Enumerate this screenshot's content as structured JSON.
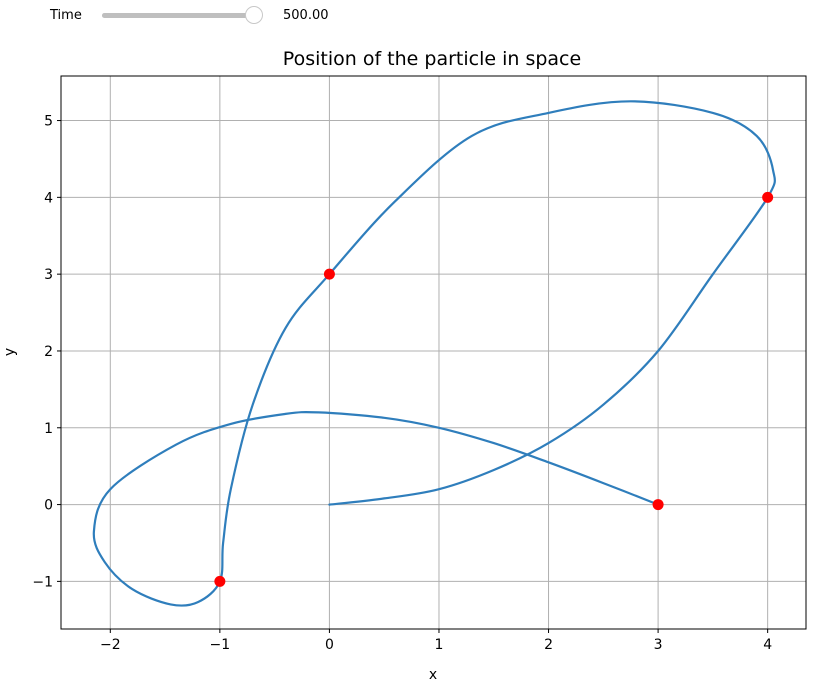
{
  "controls": {
    "time_label": "Time",
    "time_value": "500.00",
    "slider_fraction": 1.0
  },
  "chart_data": {
    "type": "line",
    "title": "Position of the particle in space",
    "xlabel": "x",
    "ylabel": "y",
    "xlim": [
      -2.45,
      4.35
    ],
    "ylim": [
      -1.62,
      5.58
    ],
    "xticks": [
      -2,
      -1,
      0,
      1,
      2,
      3,
      4
    ],
    "yticks": [
      -1,
      0,
      1,
      2,
      3,
      4,
      5
    ],
    "xtick_labels": [
      "−2",
      "−1",
      "0",
      "1",
      "2",
      "3",
      "4"
    ],
    "ytick_labels": [
      "−1",
      "0",
      "1",
      "2",
      "3",
      "4",
      "5"
    ],
    "grid": true,
    "line_color": "#2f7ebc",
    "marker_color": "#ff0000",
    "series": [
      {
        "points": [
          [
            0,
            0
          ],
          [
            0.5,
            0.08
          ],
          [
            1,
            0.2
          ],
          [
            1.5,
            0.45
          ],
          [
            2,
            0.8
          ],
          [
            2.5,
            1.3
          ],
          [
            3,
            2.0
          ],
          [
            3.5,
            3.0
          ],
          [
            4,
            4.0
          ],
          [
            4.05,
            4.35
          ],
          [
            3.9,
            4.8
          ],
          [
            3.5,
            5.1
          ],
          [
            2.75,
            5.25
          ],
          [
            2,
            5.1
          ],
          [
            1.3,
            4.8
          ],
          [
            0.6,
            3.95
          ],
          [
            0,
            3.0
          ],
          [
            -0.4,
            2.3
          ],
          [
            -0.7,
            1.3
          ],
          [
            -0.9,
            0.2
          ],
          [
            -0.97,
            -0.5
          ],
          [
            -1,
            -1.0
          ],
          [
            -1.2,
            -1.27
          ],
          [
            -1.45,
            -1.3
          ],
          [
            -1.8,
            -1.1
          ],
          [
            -2.05,
            -0.75
          ],
          [
            -2.15,
            -0.35
          ],
          [
            -2.0,
            0.2
          ],
          [
            -1.4,
            0.78
          ],
          [
            -0.9,
            1.05
          ],
          [
            -0.4,
            1.18
          ],
          [
            -0.1,
            1.2
          ],
          [
            0.5,
            1.13
          ],
          [
            1,
            1.0
          ],
          [
            1.5,
            0.8
          ],
          [
            2,
            0.55
          ],
          [
            2.5,
            0.28
          ],
          [
            3,
            0.0
          ]
        ]
      }
    ],
    "markers": [
      {
        "x": 3,
        "y": 0
      },
      {
        "x": 4,
        "y": 4
      },
      {
        "x": 0,
        "y": 3
      },
      {
        "x": -1,
        "y": -1
      }
    ]
  }
}
